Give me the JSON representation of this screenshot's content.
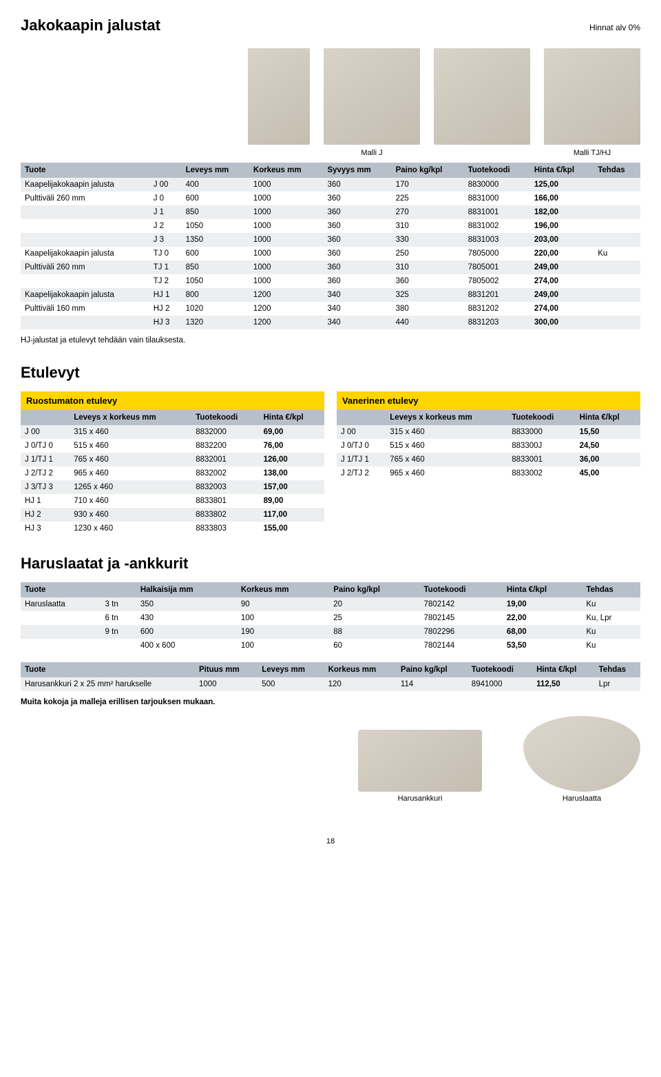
{
  "header": {
    "title": "Jakokaapin jalustat",
    "note": "Hinnat alv 0%"
  },
  "model_captions": {
    "left": "Malli J",
    "right": "Malli TJ/HJ"
  },
  "table1": {
    "cols": [
      "Tuote",
      "",
      "Leveys mm",
      "Korkeus mm",
      "Syvyys mm",
      "Paino kg/kpl",
      "Tuotekoodi",
      "Hinta €/kpl",
      "Tehdas"
    ],
    "rows": [
      [
        "Kaapelijakokaapin jalusta",
        "J 00",
        "400",
        "1000",
        "360",
        "170",
        "8830000",
        "125,00",
        ""
      ],
      [
        "Pulttiväli 260 mm",
        "J 0",
        "600",
        "1000",
        "360",
        "225",
        "8831000",
        "166,00",
        ""
      ],
      [
        "",
        "J 1",
        "850",
        "1000",
        "360",
        "270",
        "8831001",
        "182,00",
        ""
      ],
      [
        "",
        "J 2",
        "1050",
        "1000",
        "360",
        "310",
        "8831002",
        "196,00",
        ""
      ],
      [
        "",
        "J 3",
        "1350",
        "1000",
        "360",
        "330",
        "8831003",
        "203,00",
        ""
      ],
      [
        "Kaapelijakokaapin jalusta",
        "TJ 0",
        "600",
        "1000",
        "360",
        "250",
        "7805000",
        "220,00",
        "Ku"
      ],
      [
        "Pulttiväli 260 mm",
        "TJ 1",
        "850",
        "1000",
        "360",
        "310",
        "7805001",
        "249,00",
        ""
      ],
      [
        "",
        "TJ 2",
        "1050",
        "1000",
        "360",
        "360",
        "7805002",
        "274,00",
        ""
      ],
      [
        "Kaapelijakokaapin jalusta",
        "HJ 1",
        "800",
        "1200",
        "340",
        "325",
        "8831201",
        "249,00",
        ""
      ],
      [
        "Pulttiväli 160 mm",
        "HJ 2",
        "1020",
        "1200",
        "340",
        "380",
        "8831202",
        "274,00",
        ""
      ],
      [
        "",
        "HJ 3",
        "1320",
        "1200",
        "340",
        "440",
        "8831203",
        "300,00",
        ""
      ]
    ]
  },
  "note1": "HJ-jalustat ja etulevyt tehdään vain tilauksesta.",
  "etulevyt_title": "Etulevyt",
  "table2a": {
    "title": "Ruostumaton etulevy",
    "cols": [
      "",
      "Leveys x korkeus mm",
      "Tuotekoodi",
      "Hinta €/kpl"
    ],
    "rows": [
      [
        "J 00",
        "315 x 460",
        "8832000",
        "69,00"
      ],
      [
        "J 0/TJ 0",
        "515 x 460",
        "8832200",
        "76,00"
      ],
      [
        "J 1/TJ 1",
        "765 x 460",
        "8832001",
        "126,00"
      ],
      [
        "J 2/TJ 2",
        "965 x 460",
        "8832002",
        "138,00"
      ],
      [
        "J 3/TJ 3",
        "1265 x 460",
        "8832003",
        "157,00"
      ],
      [
        "HJ 1",
        "710 x 460",
        "8833801",
        "89,00"
      ],
      [
        "HJ 2",
        "930 x 460",
        "8833802",
        "117,00"
      ],
      [
        "HJ 3",
        "1230 x 460",
        "8833803",
        "155,00"
      ]
    ]
  },
  "table2b": {
    "title": "Vanerinen etulevy",
    "cols": [
      "",
      "Leveys x korkeus mm",
      "Tuotekoodi",
      "Hinta €/kpl"
    ],
    "rows": [
      [
        "J 00",
        "315 x 460",
        "8833000",
        "15,50"
      ],
      [
        "J 0/TJ 0",
        "515 x 460",
        "883300J",
        "24,50"
      ],
      [
        "J 1/TJ 1",
        "765 x 460",
        "8833001",
        "36,00"
      ],
      [
        "J 2/TJ 2",
        "965 x 460",
        "8833002",
        "45,00"
      ]
    ]
  },
  "harus_title": "Haruslaatat ja -ankkurit",
  "table3": {
    "cols": [
      "Tuote",
      "",
      "Halkaisija mm",
      "Korkeus mm",
      "Paino kg/kpl",
      "Tuotekoodi",
      "Hinta €/kpl",
      "Tehdas"
    ],
    "rows": [
      [
        "Haruslaatta",
        "3 tn",
        "350",
        "90",
        "20",
        "7802142",
        "19,00",
        "Ku"
      ],
      [
        "",
        "6 tn",
        "430",
        "100",
        "25",
        "7802145",
        "22,00",
        "Ku, Lpr"
      ],
      [
        "",
        "9 tn",
        "600",
        "190",
        "88",
        "7802296",
        "68,00",
        "Ku"
      ],
      [
        "",
        "",
        "400 x 600",
        "100",
        "60",
        "7802144",
        "53,50",
        "Ku"
      ]
    ]
  },
  "table4": {
    "cols": [
      "Tuote",
      "Pituus mm",
      "Leveys mm",
      "Korkeus mm",
      "Paino kg/kpl",
      "Tuotekoodi",
      "Hinta €/kpl",
      "Tehdas"
    ],
    "rows": [
      [
        "Harusankkuri 2 x 25 mm² harukselle",
        "1000",
        "500",
        "120",
        "114",
        "8941000",
        "112,50",
        "Lpr"
      ]
    ]
  },
  "note2": "Muita kokoja ja malleja erillisen tarjouksen mukaan.",
  "photo_labels": {
    "left": "Harusankkuri",
    "right": "Haruslaatta"
  },
  "page_number": "18"
}
